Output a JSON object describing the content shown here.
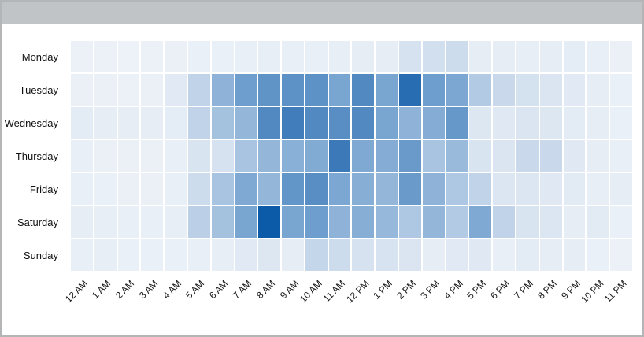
{
  "window": {
    "titlebar_color": "#c0c4c7",
    "frame_border_color": "#b3b5b7",
    "background_color": "#ffffff"
  },
  "chart_data": {
    "type": "heatmap",
    "rows": [
      "Monday",
      "Tuesday",
      "Wednesday",
      "Thursday",
      "Friday",
      "Saturday",
      "Sunday"
    ],
    "columns": [
      "12 AM",
      "1 AM",
      "2 AM",
      "3 AM",
      "4 AM",
      "5 AM",
      "6 AM",
      "7 AM",
      "8 AM",
      "9 AM",
      "10 AM",
      "11 AM",
      "12 PM",
      "1 PM",
      "2 PM",
      "3 PM",
      "4 PM",
      "5 PM",
      "6 PM",
      "7 PM",
      "8 PM",
      "9 PM",
      "10 PM",
      "11 PM"
    ],
    "values": [
      [
        3,
        3,
        2,
        3,
        4,
        5,
        5,
        6,
        7,
        6,
        6,
        7,
        8,
        8,
        20,
        22,
        24,
        8,
        8,
        7,
        8,
        9,
        6,
        4
      ],
      [
        4,
        4,
        3,
        4,
        12,
        30,
        50,
        62,
        67,
        68,
        68,
        58,
        72,
        58,
        88,
        62,
        57,
        36,
        26,
        21,
        17,
        12,
        8,
        5
      ],
      [
        10,
        8,
        8,
        8,
        9,
        30,
        42,
        48,
        72,
        78,
        72,
        70,
        72,
        58,
        50,
        54,
        65,
        15,
        13,
        17,
        15,
        10,
        8,
        5
      ],
      [
        6,
        4,
        4,
        4,
        6,
        18,
        20,
        40,
        48,
        52,
        55,
        80,
        56,
        54,
        64,
        40,
        46,
        18,
        17,
        26,
        26,
        13,
        8,
        6
      ],
      [
        6,
        5,
        4,
        4,
        6,
        24,
        40,
        56,
        48,
        66,
        70,
        57,
        53,
        48,
        64,
        50,
        38,
        30,
        16,
        16,
        13,
        11,
        7,
        8
      ],
      [
        8,
        7,
        6,
        6,
        7,
        32,
        42,
        58,
        100,
        58,
        62,
        50,
        53,
        47,
        38,
        48,
        36,
        56,
        30,
        18,
        16,
        8,
        11,
        5
      ],
      [
        6,
        7,
        5,
        5,
        5,
        6,
        7,
        12,
        15,
        8,
        28,
        24,
        20,
        19,
        17,
        8,
        12,
        13,
        6,
        10,
        8,
        8,
        5,
        3
      ]
    ],
    "value_range": [
      0,
      100
    ],
    "grid_gap_color": "#ffffff",
    "legend": "none",
    "color_scale": {
      "stops": [
        {
          "value": 0,
          "color": "#f0f4f9"
        },
        {
          "value": 20,
          "color": "#d6e2f0"
        },
        {
          "value": 40,
          "color": "#a9c4e0"
        },
        {
          "value": 60,
          "color": "#74a2cf"
        },
        {
          "value": 80,
          "color": "#3b79b8"
        },
        {
          "value": 100,
          "color": "#0b5ba8"
        }
      ]
    }
  }
}
